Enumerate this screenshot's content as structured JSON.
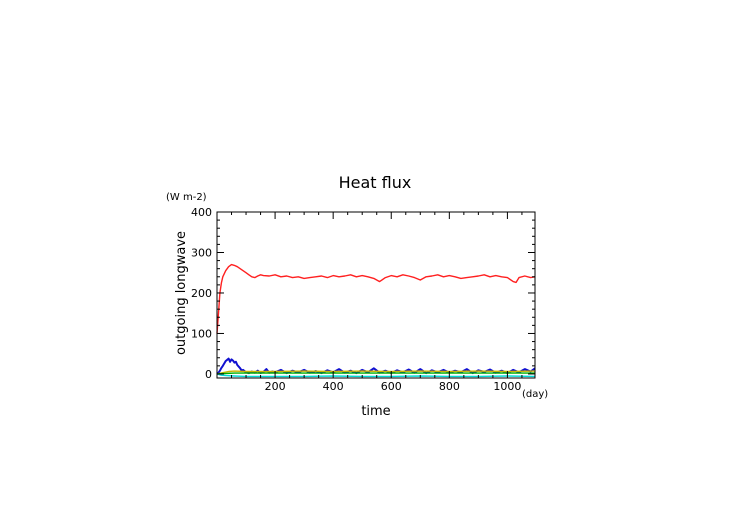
{
  "chart_data": {
    "type": "line",
    "title": "Heat flux",
    "xlabel": "time",
    "xunit": "(day)",
    "ylabel": "outgoing longwave",
    "yunit": "(W m-2)",
    "xlim": [
      0,
      1095
    ],
    "ylim": [
      -10,
      400
    ],
    "xticks": [
      200,
      400,
      600,
      800,
      1000
    ],
    "yticks": [
      0,
      100,
      200,
      300,
      400
    ],
    "grid": false,
    "series": [
      {
        "color": "#ff2020",
        "x": [
          0,
          5,
          10,
          15,
          20,
          30,
          40,
          50,
          60,
          70,
          80,
          90,
          100,
          110,
          120,
          130,
          140,
          150,
          160,
          180,
          200,
          220,
          240,
          260,
          280,
          300,
          320,
          340,
          360,
          380,
          400,
          420,
          440,
          460,
          480,
          500,
          520,
          540,
          560,
          580,
          600,
          620,
          640,
          660,
          680,
          700,
          720,
          740,
          760,
          780,
          800,
          820,
          840,
          860,
          880,
          900,
          920,
          940,
          960,
          980,
          1000,
          1020,
          1030,
          1040,
          1060,
          1080,
          1095
        ],
        "y": [
          100,
          150,
          200,
          225,
          240,
          255,
          265,
          270,
          268,
          265,
          260,
          255,
          250,
          245,
          240,
          238,
          242,
          245,
          243,
          242,
          245,
          240,
          242,
          238,
          240,
          236,
          238,
          240,
          242,
          238,
          243,
          240,
          242,
          245,
          240,
          243,
          240,
          236,
          228,
          238,
          243,
          240,
          245,
          242,
          238,
          232,
          240,
          242,
          245,
          240,
          243,
          240,
          236,
          238,
          240,
          242,
          245,
          240,
          243,
          240,
          238,
          228,
          226,
          238,
          242,
          238,
          240
        ]
      },
      {
        "color": "#1010d0",
        "x": [
          0,
          5,
          10,
          15,
          20,
          25,
          30,
          35,
          40,
          45,
          50,
          55,
          60,
          65,
          70,
          75,
          80,
          85,
          90,
          100,
          110,
          120,
          130,
          140,
          150,
          160,
          170,
          180,
          190,
          200,
          220,
          240,
          260,
          280,
          300,
          320,
          340,
          360,
          380,
          400,
          420,
          440,
          460,
          480,
          500,
          520,
          540,
          560,
          580,
          600,
          620,
          640,
          660,
          680,
          700,
          720,
          740,
          760,
          780,
          800,
          820,
          840,
          860,
          880,
          900,
          920,
          940,
          960,
          980,
          1000,
          1020,
          1040,
          1060,
          1080,
          1095
        ],
        "y": [
          0,
          3,
          8,
          15,
          20,
          26,
          32,
          35,
          38,
          30,
          36,
          33,
          28,
          30,
          22,
          18,
          14,
          8,
          10,
          4,
          2,
          6,
          3,
          8,
          2,
          5,
          12,
          3,
          6,
          4,
          10,
          2,
          8,
          4,
          10,
          3,
          7,
          2,
          9,
          4,
          12,
          3,
          8,
          2,
          10,
          4,
          14,
          3,
          8,
          2,
          9,
          4,
          11,
          3,
          12,
          2,
          9,
          4,
          10,
          3,
          8,
          4,
          12,
          2,
          9,
          5,
          11,
          3,
          8,
          2,
          10,
          4,
          12,
          6,
          14
        ]
      },
      {
        "color": "#c8b400",
        "x": [
          0,
          20,
          40,
          60,
          100,
          200,
          300,
          400,
          500,
          600,
          700,
          800,
          900,
          1000,
          1095
        ],
        "y": [
          0,
          3,
          6,
          7,
          6,
          6,
          7,
          6,
          7,
          6,
          7,
          6,
          7,
          6,
          7
        ]
      },
      {
        "color": "#00b000",
        "x": [
          0,
          30,
          60,
          100,
          200,
          300,
          400,
          500,
          600,
          700,
          800,
          900,
          1000,
          1095
        ],
        "y": [
          0,
          1,
          2,
          2,
          2,
          2,
          2,
          2,
          2,
          2,
          2,
          2,
          2,
          2
        ]
      },
      {
        "color": "#00d8d8",
        "x": [
          0,
          15,
          30,
          60,
          100,
          200,
          300,
          400,
          500,
          600,
          700,
          800,
          900,
          1000,
          1095
        ],
        "y": [
          0,
          -3,
          -4,
          -5,
          -6,
          -6,
          -6,
          -5,
          -6,
          -6,
          -5,
          -6,
          -6,
          -5,
          -6
        ]
      }
    ]
  }
}
